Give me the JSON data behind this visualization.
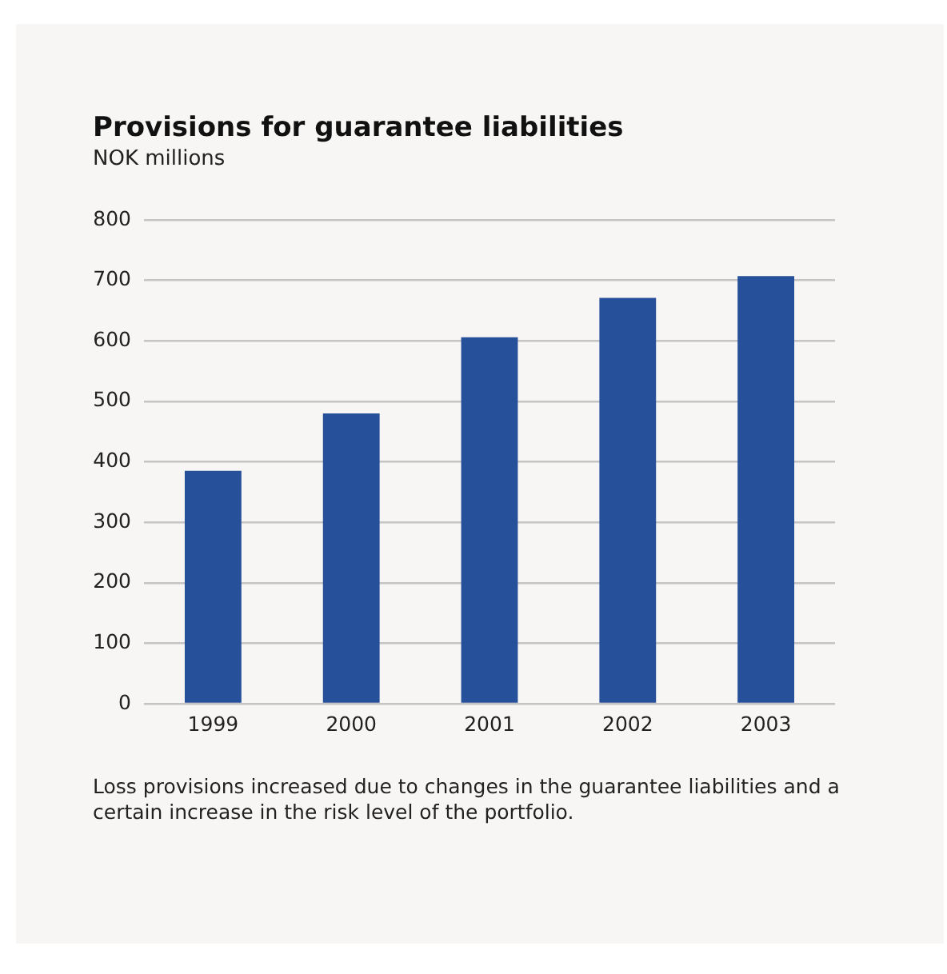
{
  "chart_data": {
    "type": "bar",
    "title": "Provisions for guarantee liabilities",
    "subtitle": "NOK millions",
    "categories": [
      "1999",
      "2000",
      "2001",
      "2002",
      "2003"
    ],
    "values": [
      385,
      480,
      606,
      671,
      707
    ],
    "color": "#26509a",
    "ylim": [
      0,
      800
    ],
    "yticks": [
      0,
      100,
      200,
      300,
      400,
      500,
      600,
      700,
      800
    ],
    "grid": "y",
    "legend": false,
    "annotations": [
      "Loss provisions increased due to changes in the guarantee liabilities and a certain increase in the risk level of the portfolio."
    ]
  }
}
